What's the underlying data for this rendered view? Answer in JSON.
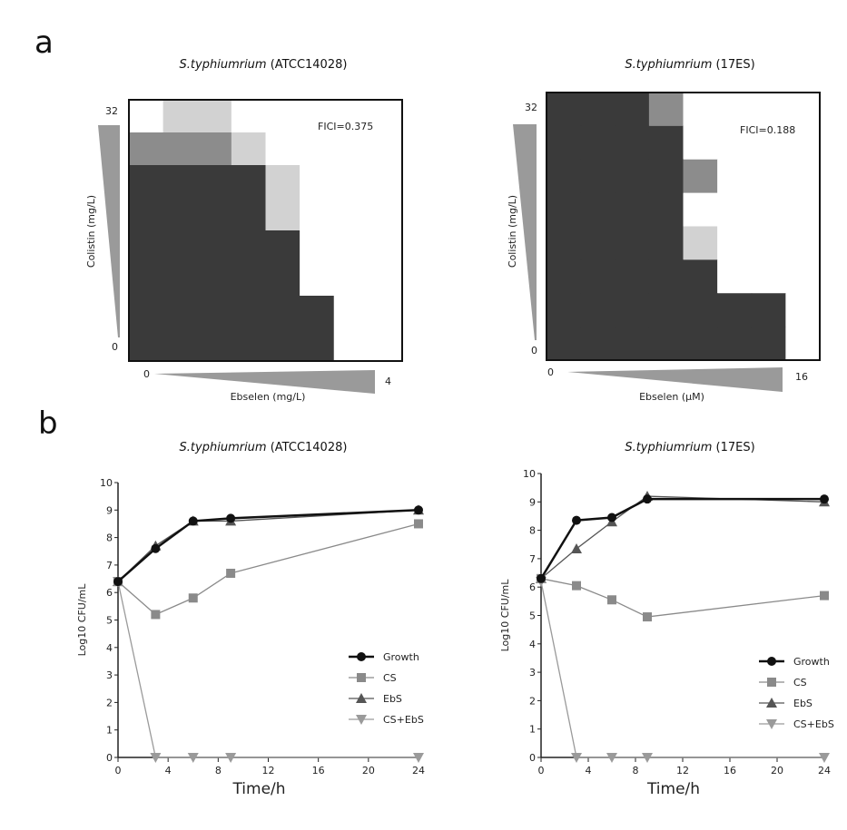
{
  "panels": {
    "a": "a",
    "b": "b"
  },
  "chart_data": [
    {
      "type": "heatmap",
      "panel": "a",
      "title_species": "S.typhiumrium",
      "title_strain": " (ATCC14028)",
      "xlabel": "Ebselen (mg/L)",
      "ylabel": "Colistin (mg/L)",
      "x_range_labels": [
        "0",
        "4"
      ],
      "y_range_labels": [
        "0",
        "32"
      ],
      "annotation": "FICI=0.375",
      "levels_note": "0=no growth,3=full growth",
      "grid": [
        [
          0,
          1,
          1,
          0,
          0,
          0,
          0,
          0
        ],
        [
          2,
          2,
          2,
          1,
          0,
          0,
          0,
          0
        ],
        [
          3,
          3,
          3,
          3,
          1,
          0,
          0,
          0
        ],
        [
          3,
          3,
          3,
          3,
          1,
          0,
          0,
          0
        ],
        [
          3,
          3,
          3,
          3,
          3,
          0,
          0,
          0
        ],
        [
          3,
          3,
          3,
          3,
          3,
          0,
          0,
          0
        ],
        [
          3,
          3,
          3,
          3,
          3,
          3,
          0,
          0
        ],
        [
          3,
          3,
          3,
          3,
          3,
          3,
          0,
          0
        ]
      ]
    },
    {
      "type": "heatmap",
      "panel": "a",
      "title_species": "S.typhiumrium",
      "title_strain": " (17ES)",
      "xlabel": "Ebselen (μM)",
      "ylabel": "Colistin (mg/L)",
      "x_range_labels": [
        "0",
        "16"
      ],
      "y_range_labels": [
        "0",
        "32"
      ],
      "annotation": "FICI=0.188",
      "levels_note": "0=no growth,3=full growth",
      "grid": [
        [
          3,
          3,
          3,
          2,
          0,
          0,
          0,
          0
        ],
        [
          3,
          3,
          3,
          3,
          0,
          0,
          0,
          0
        ],
        [
          3,
          3,
          3,
          3,
          2,
          0,
          0,
          0
        ],
        [
          3,
          3,
          3,
          3,
          0,
          0,
          0,
          0
        ],
        [
          3,
          3,
          3,
          3,
          1,
          0,
          0,
          0
        ],
        [
          3,
          3,
          3,
          3,
          3,
          0,
          0,
          0
        ],
        [
          3,
          3,
          3,
          3,
          3,
          3,
          3,
          0
        ],
        [
          3,
          3,
          3,
          3,
          3,
          3,
          3,
          0
        ]
      ]
    },
    {
      "type": "line",
      "panel": "b",
      "title_species": "S.typhiumrium",
      "title_strain": " (ATCC14028)",
      "xlabel": "Time/h",
      "ylabel": "Log10 CFU/mL",
      "xlim": [
        0,
        24
      ],
      "ylim": [
        0,
        10
      ],
      "xticks": [
        0,
        4,
        8,
        12,
        16,
        20,
        24
      ],
      "yticks": [
        0,
        1,
        2,
        3,
        4,
        5,
        6,
        7,
        8,
        9,
        10
      ],
      "legend": "right-middle",
      "x": [
        0,
        3,
        6,
        9,
        24
      ],
      "series": [
        {
          "name": "Growth",
          "values": [
            6.4,
            7.6,
            8.6,
            8.7,
            9.0
          ],
          "color": "#111111",
          "marker": "circle"
        },
        {
          "name": "CS",
          "values": [
            6.4,
            5.2,
            5.8,
            6.7,
            8.5
          ],
          "color": "#8a8a8a",
          "marker": "square"
        },
        {
          "name": "EbS",
          "values": [
            6.4,
            7.7,
            8.6,
            8.6,
            9.0
          ],
          "color": "#555555",
          "marker": "triangle-up"
        },
        {
          "name": "CS+EbS",
          "values": [
            6.4,
            0,
            0,
            0,
            0
          ],
          "color": "#9a9a9a",
          "marker": "triangle-down"
        }
      ]
    },
    {
      "type": "line",
      "panel": "b",
      "title_species": "S.typhiumrium",
      "title_strain": " (17ES)",
      "xlabel": "Time/h",
      "ylabel": "Log10 CFU/mL",
      "xlim": [
        0,
        24
      ],
      "ylim": [
        0,
        10
      ],
      "xticks": [
        0,
        4,
        8,
        12,
        16,
        20,
        24
      ],
      "yticks": [
        0,
        1,
        2,
        3,
        4,
        5,
        6,
        7,
        8,
        9,
        10
      ],
      "legend": "right-middle",
      "x": [
        0,
        3,
        6,
        9,
        24
      ],
      "series": [
        {
          "name": "Growth",
          "values": [
            6.3,
            8.35,
            8.45,
            9.1,
            9.1
          ],
          "color": "#111111",
          "marker": "circle"
        },
        {
          "name": "CS",
          "values": [
            6.3,
            6.05,
            5.55,
            4.95,
            5.7
          ],
          "color": "#8a8a8a",
          "marker": "square"
        },
        {
          "name": "EbS",
          "values": [
            6.3,
            7.35,
            8.3,
            9.2,
            9.0
          ],
          "color": "#555555",
          "marker": "triangle-up"
        },
        {
          "name": "CS+EbS",
          "values": [
            6.2,
            0,
            0,
            0,
            0
          ],
          "color": "#9a9a9a",
          "marker": "triangle-down"
        }
      ]
    }
  ]
}
